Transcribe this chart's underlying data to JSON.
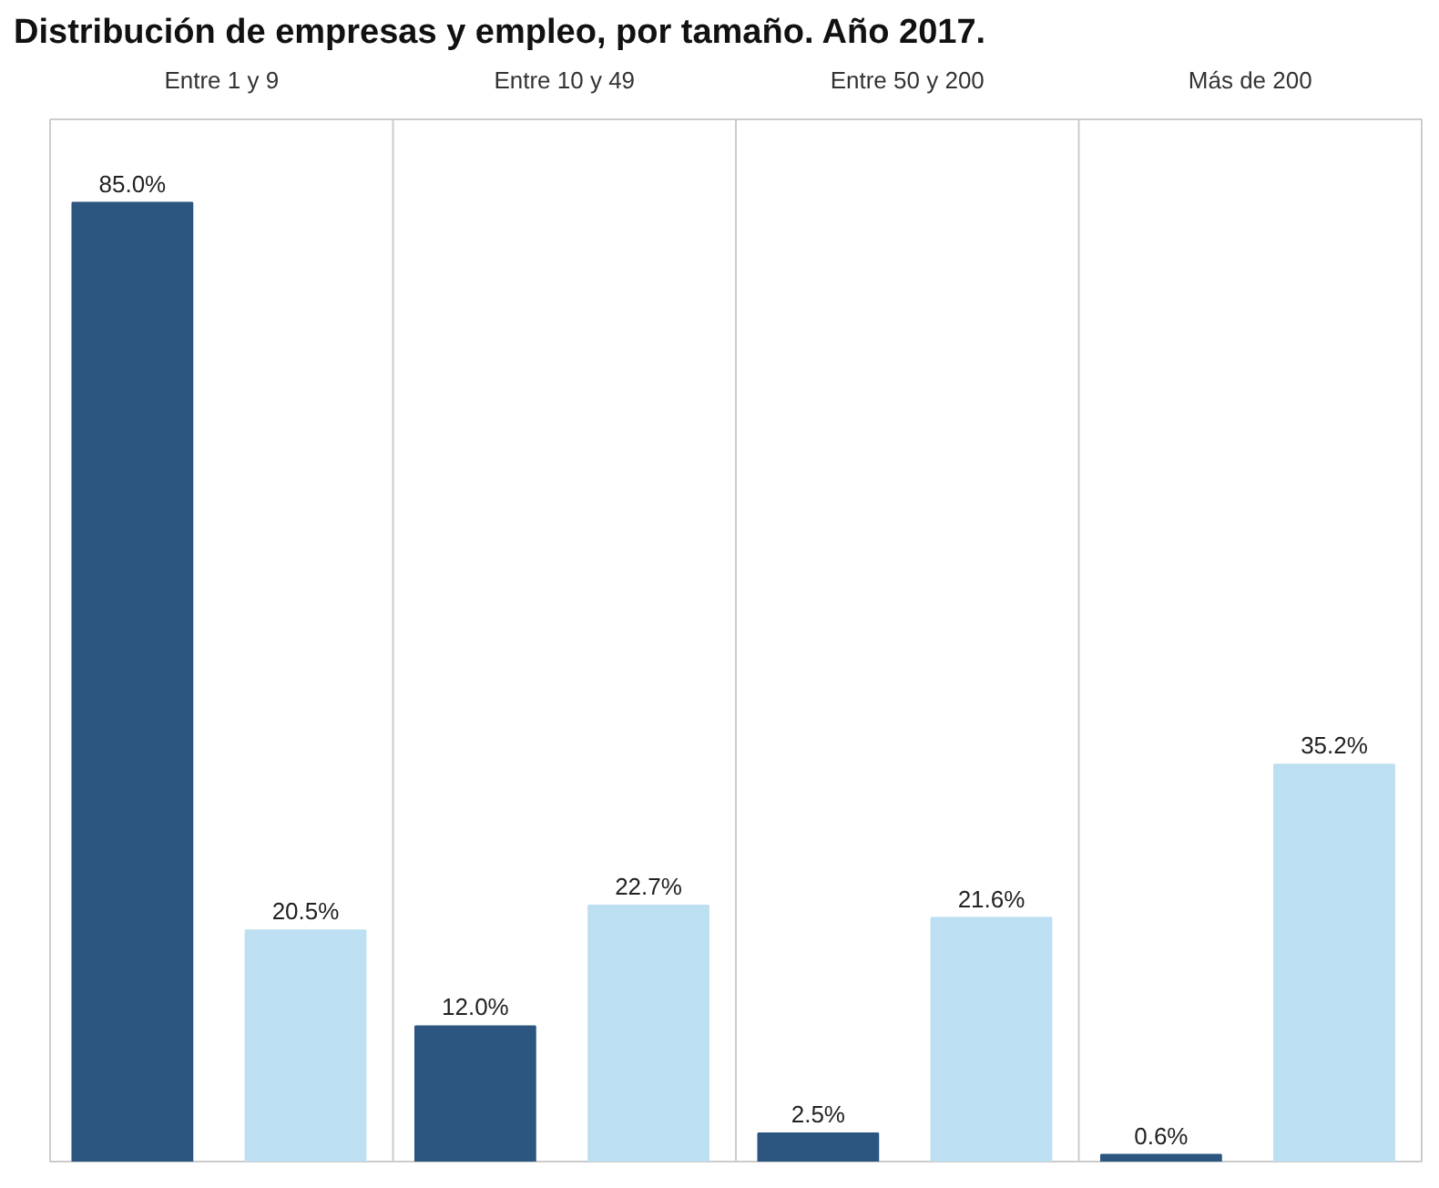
{
  "chart_data": {
    "type": "bar",
    "title": "Distribución de empresas y empleo, por tamaño. Año 2017.",
    "categories": [
      "Entre 1 y 9",
      "Entre 10 y 49",
      "Entre 50 y 200",
      "Más de 200"
    ],
    "series": [
      {
        "color": "#2c5680",
        "values": [
          85.0,
          12.0,
          2.5,
          0.6
        ],
        "value_labels": [
          "85.0%",
          "12.0%",
          "2.5%",
          "0.6%"
        ]
      },
      {
        "color": "#bcdff1",
        "values": [
          20.5,
          22.7,
          21.6,
          35.2
        ],
        "value_labels": [
          "20.5%",
          "22.7%",
          "21.6%",
          "35.2%"
        ]
      }
    ]
  }
}
